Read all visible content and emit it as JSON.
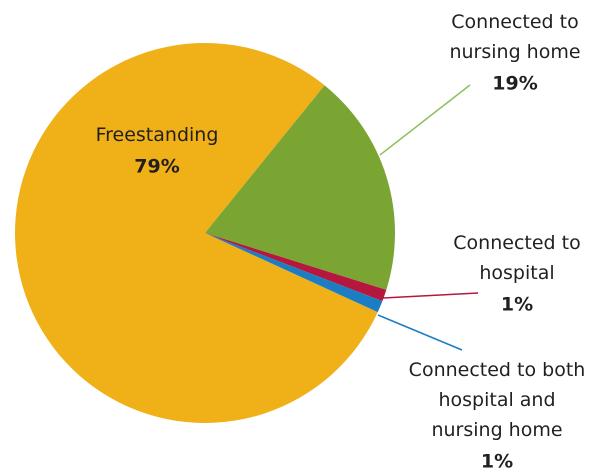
{
  "chart_data": {
    "type": "pie",
    "categories": [
      "Freestanding",
      "Connected to nursing home",
      "Connected to hospital",
      "Connected to both hospital and nursing home"
    ],
    "values": [
      79,
      19,
      1,
      1
    ],
    "value_labels": [
      "79%",
      "19%",
      "1%",
      "1%"
    ],
    "colors": [
      "#efb018",
      "#7aa533",
      "#b5173f",
      "#1b7dc2"
    ]
  }
}
